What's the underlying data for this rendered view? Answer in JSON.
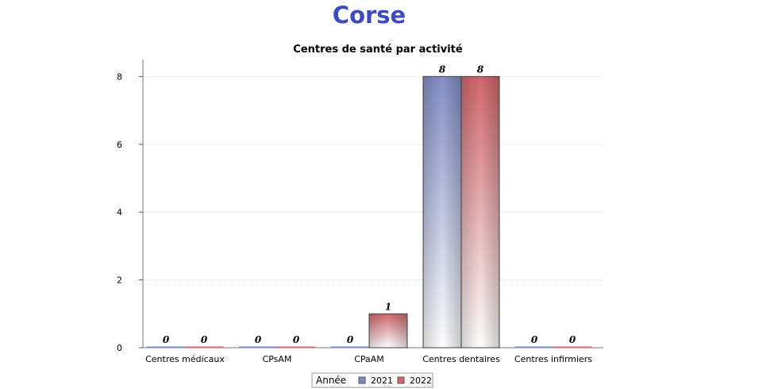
{
  "page": {
    "title": "Corse",
    "title_color": "#3d4bc0"
  },
  "chart_data": {
    "type": "bar",
    "title": "Centres de santé par activité",
    "xlabel": "",
    "ylabel": "",
    "categories": [
      "Centres médicaux",
      "CPsAM",
      "CPaAM",
      "Centres dentaires",
      "Centres infirmiers"
    ],
    "series": [
      {
        "name": "2021",
        "values": [
          0,
          0,
          0,
          8,
          0
        ],
        "color": "#7b87c4"
      },
      {
        "name": "2022",
        "values": [
          0,
          0,
          1,
          8,
          0
        ],
        "color": "#d06a6e"
      }
    ],
    "ylim": [
      0,
      8.5
    ],
    "yticks": [
      0,
      2,
      4,
      6,
      8
    ],
    "grid": true,
    "legend": {
      "title": "Année",
      "position": "bottom-center"
    },
    "data_labels": true
  }
}
